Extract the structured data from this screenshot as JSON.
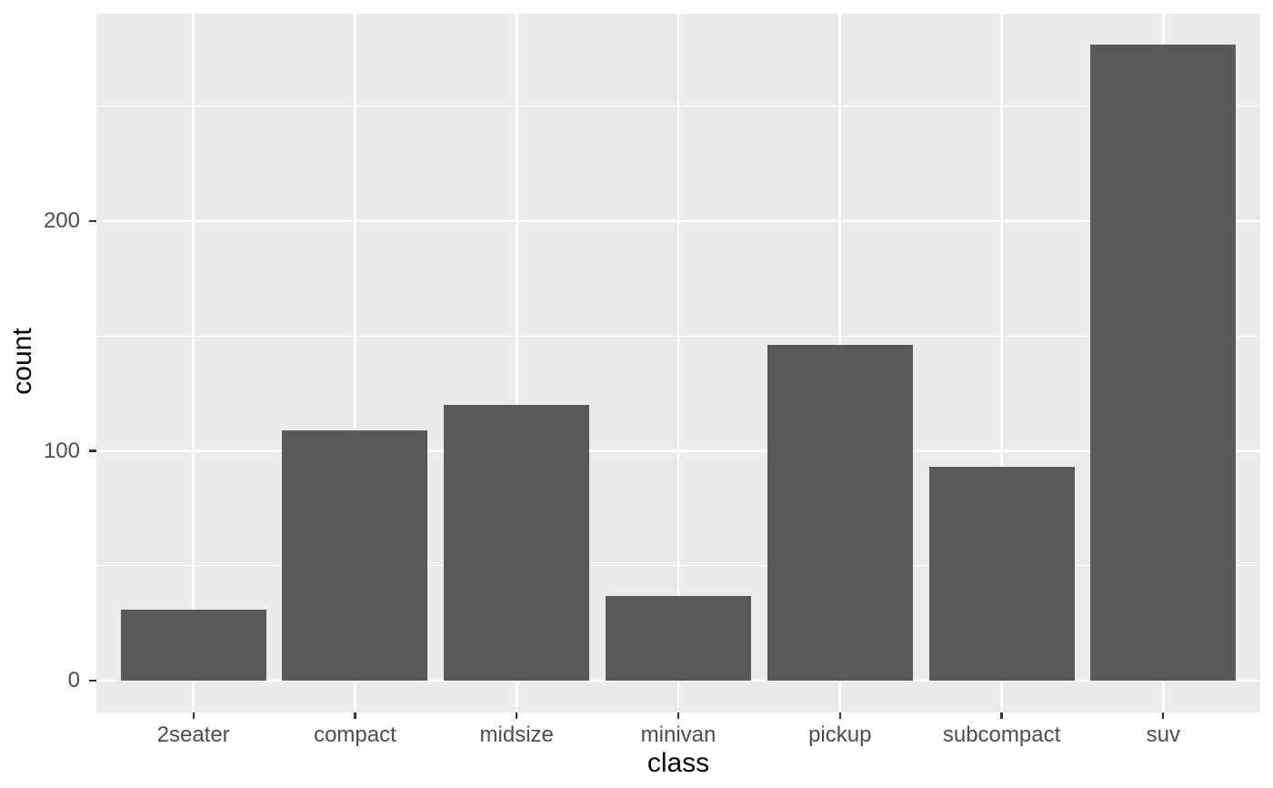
{
  "chart_data": {
    "type": "bar",
    "title": "",
    "categories": [
      "2seater",
      "compact",
      "midsize",
      "minivan",
      "pickup",
      "subcompact",
      "suv"
    ],
    "values": [
      31,
      109,
      120,
      37,
      146,
      93,
      277
    ],
    "xlabel": "class",
    "ylabel": "count",
    "ylim": [
      0,
      290
    ],
    "yticks": [
      0,
      100,
      200
    ],
    "yticks_minor": [
      50,
      150,
      250
    ],
    "grid": "major and minor horizontal, major vertical at category centers",
    "legend": false,
    "style": "ggplot2 theme_grey",
    "colors": {
      "bar_fill": "#595959",
      "panel_background": "#EBEBEB",
      "grid_major": "#FFFFFF",
      "grid_minor": "#FFFFFF",
      "tick_label": "#4D4D4D",
      "tick_mark": "#333333",
      "axis_title": "#000000",
      "figure_background": "#FFFFFF"
    }
  }
}
